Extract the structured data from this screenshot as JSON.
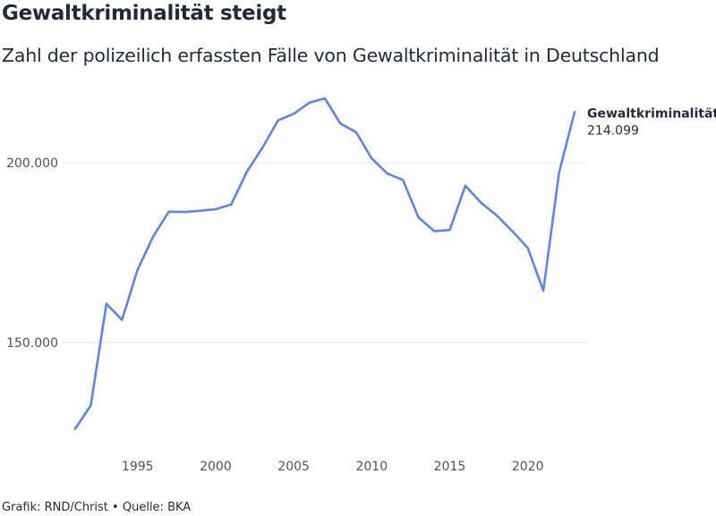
{
  "title": "Gewaltkriminalität steigt",
  "subtitle": "Zahl der polizeilich erfassten Fälle von Gewaltkriminalität in Deutschland",
  "footer": {
    "credit": "Grafik: RND/Christ",
    "separator": "•",
    "source": "Quelle: BKA"
  },
  "colors": {
    "line": "#5b84ee",
    "grid": "#e3e4e6",
    "text": "#1f2b3a",
    "tick": "#4a5361"
  },
  "chart_data": {
    "type": "line",
    "title": "Gewaltkriminalität steigt",
    "subtitle": "Zahl der polizeilich erfassten Fälle von Gewaltkriminalität in Deutschland",
    "xlabel": "",
    "ylabel": "",
    "x": [
      1991,
      1992,
      1993,
      1994,
      1995,
      1996,
      1997,
      1998,
      1999,
      2000,
      2001,
      2002,
      2003,
      2004,
      2005,
      2006,
      2007,
      2008,
      2009,
      2010,
      2011,
      2012,
      2013,
      2014,
      2015,
      2016,
      2017,
      2018,
      2019,
      2020,
      2021,
      2022,
      2023
    ],
    "xticks": [
      1995,
      2000,
      2005,
      2010,
      2015,
      2020
    ],
    "xtick_labels": [
      "1995",
      "2000",
      "2005",
      "2010",
      "2015",
      "2020"
    ],
    "xlim": [
      1991,
      2023
    ],
    "yticks": [
      150000,
      200000
    ],
    "ytick_labels": [
      "150.000",
      "200.000"
    ],
    "ylim": [
      125000,
      220000
    ],
    "grid": true,
    "series": [
      {
        "name": "Gewaltkriminalität",
        "values": [
          126000,
          132500,
          160800,
          156300,
          170300,
          179500,
          186400,
          186300,
          186650,
          187100,
          188400,
          197500,
          204200,
          211800,
          213600,
          216700,
          217900,
          210900,
          208500,
          201200,
          197000,
          195200,
          184800,
          181000,
          181300,
          193600,
          188900,
          185400,
          181000,
          176300,
          164400,
          197200,
          214099
        ],
        "end_label_value": "214.099"
      }
    ]
  }
}
